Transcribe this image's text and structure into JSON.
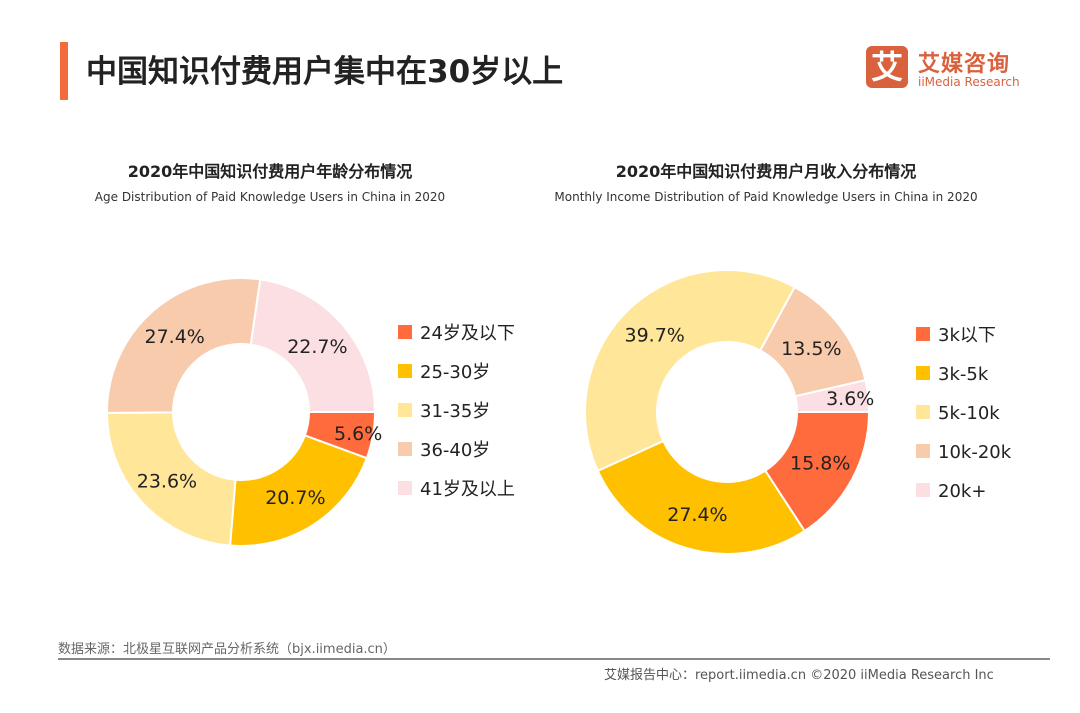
{
  "header": {
    "title": "中国知识付费用户集中在30岁以上",
    "logo_mark": "艾",
    "logo_cn": "艾媒咨询",
    "logo_en": "iiMedia Research"
  },
  "chart_data": [
    {
      "type": "pie",
      "title": "2020年中国知识付费用户年龄分布情况",
      "subtitle": "Age Distribution of Paid Knowledge Users in China in 2020",
      "donut": true,
      "legend": "right",
      "categories": [
        "24岁及以下",
        "25-30岁",
        "31-35岁",
        "36-40岁",
        "41岁及以上"
      ],
      "values": [
        5.6,
        20.7,
        23.6,
        27.4,
        22.7
      ],
      "labels": [
        "5.6%",
        "20.7%",
        "23.6%",
        "27.4%",
        "22.7%"
      ],
      "colors": [
        "#ff6b3d",
        "#ffc000",
        "#ffe699",
        "#f8cbad",
        "#fbdfe3"
      ]
    },
    {
      "type": "pie",
      "title": "2020年中国知识付费用户月收入分布情况",
      "subtitle": "Monthly Income Distribution of Paid Knowledge Users  in China in 2020",
      "donut": true,
      "legend": "right",
      "categories": [
        "3k以下",
        "3k-5k",
        "5k-10k",
        "10k-20k",
        "20k+"
      ],
      "values": [
        15.8,
        27.4,
        39.7,
        13.5,
        3.6
      ],
      "labels": [
        "15.8%",
        "27.4%",
        "39.7%",
        "13.5%",
        "3.6%"
      ],
      "colors": [
        "#ff6b3d",
        "#ffc000",
        "#ffe699",
        "#f8cbad",
        "#fbdfe3"
      ]
    }
  ],
  "footer": {
    "source": "数据来源：北极星互联网产品分析系统（bjx.iimedia.cn）",
    "copyright": "艾媒报告中心：report.iimedia.cn ©2020  iiMedia Research  Inc"
  }
}
